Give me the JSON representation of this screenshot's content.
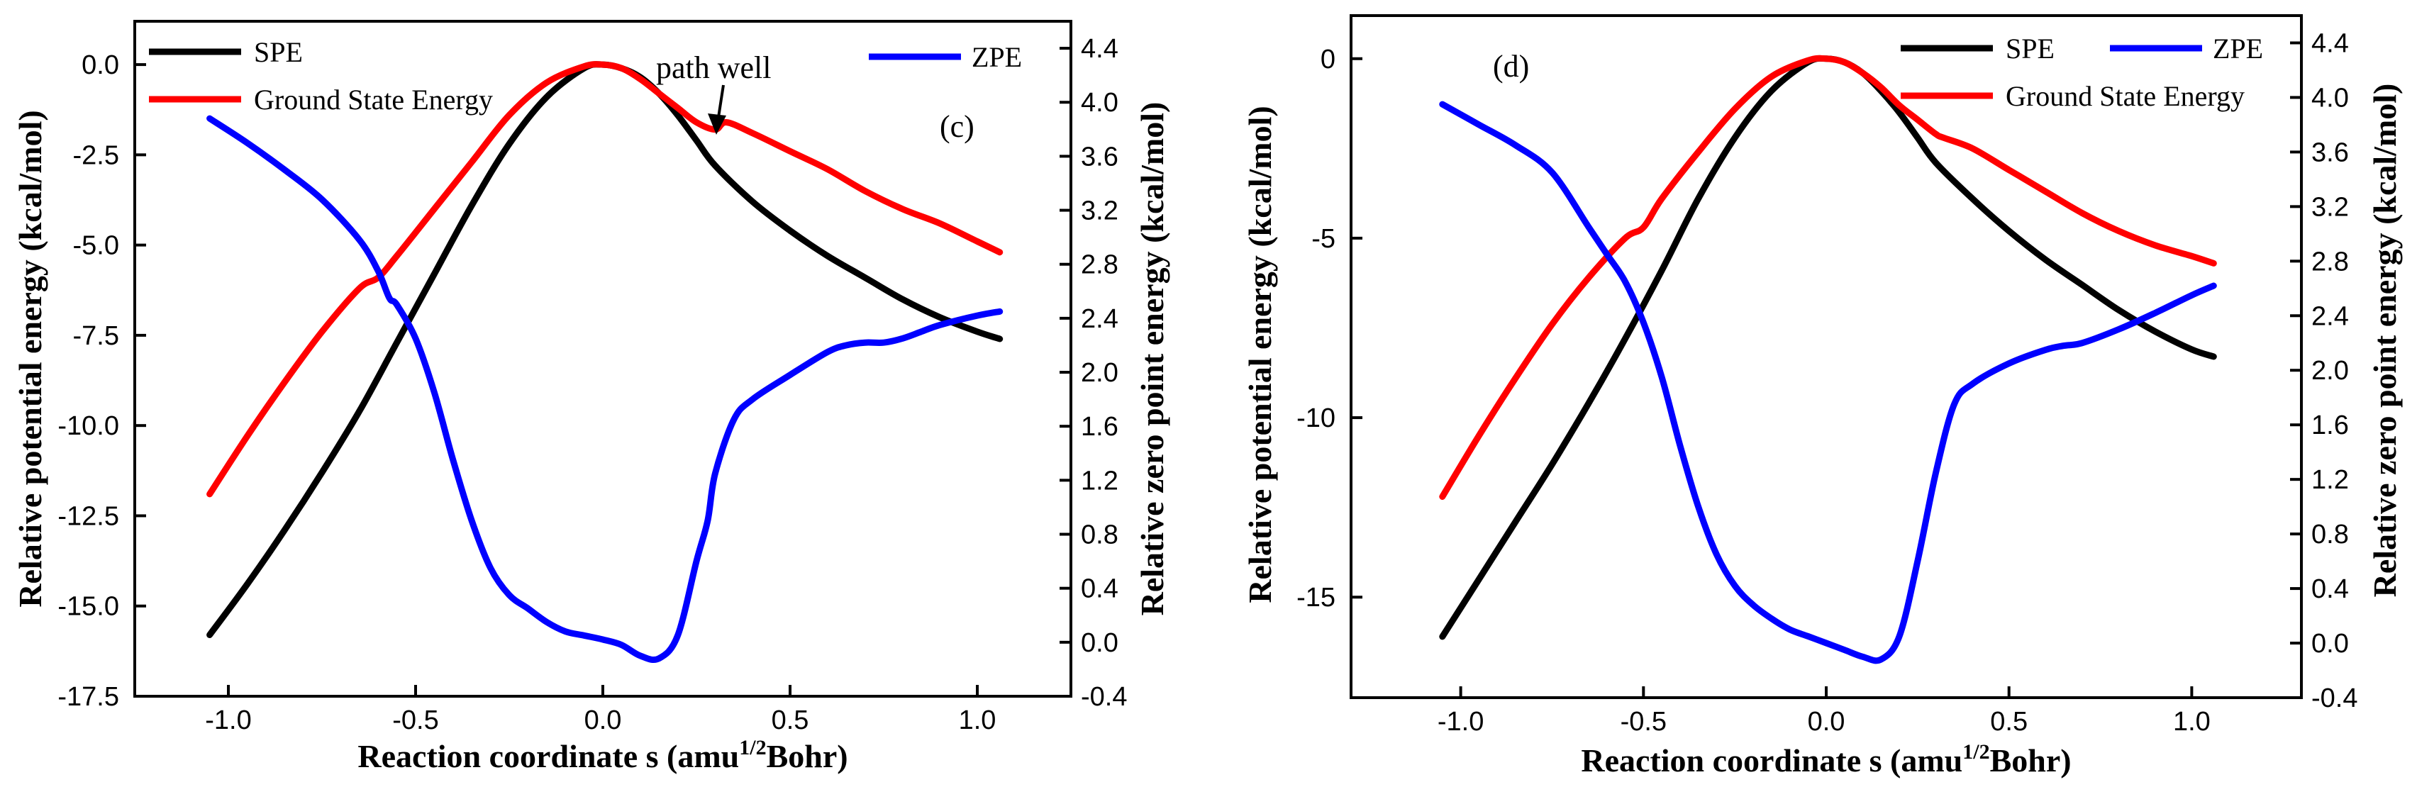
{
  "chart_data": [
    {
      "panel_label": "(c)",
      "type": "line",
      "xlabel": "Reaction coordinate s (amu",
      "xlabel_sup": "1/2",
      "xlabel_tail": "Bohr)",
      "ylabel": "Relative potential energy (kcal/mol)",
      "y2label": "Relative zero point energy (kcal/mol)",
      "xlim": [
        -1.25,
        1.25
      ],
      "ylim": [
        -17.5,
        1.2
      ],
      "y2lim": [
        -0.4,
        4.6
      ],
      "xticks": [
        -1.0,
        -0.5,
        0.0,
        0.5,
        1.0
      ],
      "xtick_labels": [
        "-1.0",
        "-0.5",
        "0.0",
        "0.5",
        "1.0"
      ],
      "yticks": [
        0.0,
        -2.5,
        -5.0,
        -7.5,
        -10.0,
        -12.5,
        -15.0,
        -17.5
      ],
      "ytick_labels": [
        "0.0",
        "-2.5",
        "-5.0",
        "-7.5",
        "-10.0",
        "-12.5",
        "-15.0",
        "-17.5"
      ],
      "y2ticks": [
        4.4,
        4.0,
        3.6,
        3.2,
        2.8,
        2.4,
        2.0,
        1.6,
        1.2,
        0.8,
        0.4,
        0.0,
        -0.4
      ],
      "y2tick_labels": [
        "4.4",
        "4.0",
        "3.6",
        "3.2",
        "2.8",
        "2.4",
        "2.0",
        "1.6",
        "1.2",
        "0.8",
        "0.4",
        "0.0",
        "-0.4"
      ],
      "legend": [
        "SPE",
        "Ground State Energy",
        "ZPE"
      ],
      "legend_placement": "SPE and Ground State Energy at top-left, ZPE at top-right",
      "annotation": {
        "text": "path well",
        "x": 0.31,
        "y": -1.8,
        "axis": "left"
      },
      "series": [
        {
          "name": "SPE",
          "color": "#000000",
          "axis": "left",
          "x": [
            -1.05,
            -0.95,
            -0.85,
            -0.75,
            -0.65,
            -0.55,
            -0.45,
            -0.35,
            -0.25,
            -0.15,
            -0.05,
            0.0,
            0.05,
            0.1,
            0.15,
            0.2,
            0.25,
            0.3,
            0.4,
            0.5,
            0.6,
            0.7,
            0.8,
            0.9,
            1.0,
            1.06
          ],
          "values": [
            -15.8,
            -14.4,
            -12.9,
            -11.3,
            -9.6,
            -7.7,
            -5.8,
            -3.9,
            -2.2,
            -0.9,
            -0.1,
            0.0,
            -0.1,
            -0.35,
            -0.8,
            -1.4,
            -2.1,
            -2.8,
            -3.8,
            -4.6,
            -5.3,
            -5.9,
            -6.5,
            -7.0,
            -7.4,
            -7.6
          ]
        },
        {
          "name": "Ground State Energy",
          "color": "#ff0000",
          "axis": "left",
          "x": [
            -1.05,
            -0.95,
            -0.85,
            -0.75,
            -0.65,
            -0.6,
            -0.55,
            -0.45,
            -0.35,
            -0.25,
            -0.15,
            -0.05,
            0.0,
            0.05,
            0.1,
            0.15,
            0.2,
            0.25,
            0.3,
            0.33,
            0.4,
            0.5,
            0.6,
            0.7,
            0.8,
            0.9,
            1.0,
            1.06
          ],
          "values": [
            -11.9,
            -10.3,
            -8.8,
            -7.4,
            -6.2,
            -5.9,
            -5.3,
            -4.0,
            -2.7,
            -1.4,
            -0.5,
            -0.05,
            0.0,
            -0.1,
            -0.4,
            -0.8,
            -1.2,
            -1.6,
            -1.8,
            -1.6,
            -1.9,
            -2.4,
            -2.9,
            -3.5,
            -4.0,
            -4.4,
            -4.9,
            -5.2
          ]
        },
        {
          "name": "ZPE",
          "color": "#0000ff",
          "axis": "right",
          "x": [
            -1.05,
            -0.95,
            -0.85,
            -0.75,
            -0.65,
            -0.6,
            -0.57,
            -0.55,
            -0.5,
            -0.45,
            -0.4,
            -0.35,
            -0.3,
            -0.25,
            -0.2,
            -0.15,
            -0.1,
            -0.05,
            0.0,
            0.05,
            0.1,
            0.15,
            0.2,
            0.25,
            0.28,
            0.3,
            0.35,
            0.4,
            0.5,
            0.6,
            0.65,
            0.7,
            0.75,
            0.8,
            0.85,
            0.9,
            1.0,
            1.06
          ],
          "values": [
            3.88,
            3.7,
            3.5,
            3.28,
            2.98,
            2.75,
            2.55,
            2.5,
            2.25,
            1.85,
            1.35,
            0.9,
            0.55,
            0.35,
            0.25,
            0.15,
            0.08,
            0.05,
            0.02,
            -0.02,
            -0.1,
            -0.12,
            0.05,
            0.6,
            0.9,
            1.25,
            1.65,
            1.8,
            1.98,
            2.15,
            2.2,
            2.22,
            2.22,
            2.25,
            2.3,
            2.35,
            2.42,
            2.45
          ]
        }
      ]
    },
    {
      "panel_label": "(d)",
      "type": "line",
      "xlabel": "Reaction coordinate s (amu",
      "xlabel_sup": "1/2",
      "xlabel_tail": "Bohr)",
      "ylabel": "Relative potential energy (kcal/mol)",
      "y2label": "Relative zero point energy (kcal/mol)",
      "xlim": [
        -1.3,
        1.3
      ],
      "ylim": [
        -17.8,
        1.2
      ],
      "y2lim": [
        -0.4,
        4.6
      ],
      "xticks": [
        -1.0,
        -0.5,
        0.0,
        0.5,
        1.0
      ],
      "xtick_labels": [
        "-1.0",
        "-0.5",
        "0.0",
        "0.5",
        "1.0"
      ],
      "yticks": [
        0,
        -5,
        -10,
        -15
      ],
      "ytick_labels": [
        "0",
        "-5",
        "-10",
        "-15"
      ],
      "y2ticks": [
        4.4,
        4.0,
        3.6,
        3.2,
        2.8,
        2.4,
        2.0,
        1.6,
        1.2,
        0.8,
        0.4,
        0.0,
        -0.4
      ],
      "y2tick_labels": [
        "4.4",
        "4.0",
        "3.6",
        "3.2",
        "2.8",
        "2.4",
        "2.0",
        "1.6",
        "1.2",
        "0.8",
        "0.4",
        "0.0",
        "-0.4"
      ],
      "legend": [
        "SPE",
        "ZPE",
        "Ground State Energy"
      ],
      "legend_placement": "top-right",
      "series": [
        {
          "name": "SPE",
          "color": "#000000",
          "axis": "left",
          "x": [
            -1.05,
            -0.95,
            -0.85,
            -0.75,
            -0.65,
            -0.55,
            -0.45,
            -0.35,
            -0.25,
            -0.15,
            -0.05,
            0.0,
            0.05,
            0.1,
            0.15,
            0.2,
            0.25,
            0.3,
            0.4,
            0.5,
            0.6,
            0.7,
            0.8,
            0.9,
            1.0,
            1.06
          ],
          "values": [
            -16.1,
            -14.5,
            -12.9,
            -11.3,
            -9.6,
            -7.8,
            -5.9,
            -3.9,
            -2.2,
            -0.9,
            -0.1,
            0.0,
            -0.1,
            -0.4,
            -0.9,
            -1.5,
            -2.2,
            -2.9,
            -3.9,
            -4.8,
            -5.6,
            -6.3,
            -7.0,
            -7.6,
            -8.1,
            -8.3
          ]
        },
        {
          "name": "Ground State Energy",
          "color": "#ff0000",
          "axis": "left",
          "x": [
            -1.05,
            -0.95,
            -0.85,
            -0.75,
            -0.65,
            -0.55,
            -0.5,
            -0.45,
            -0.35,
            -0.25,
            -0.15,
            -0.05,
            0.0,
            0.05,
            0.1,
            0.15,
            0.2,
            0.25,
            0.3,
            0.32,
            0.4,
            0.5,
            0.6,
            0.7,
            0.8,
            0.9,
            1.0,
            1.06
          ],
          "values": [
            -12.2,
            -10.5,
            -8.9,
            -7.4,
            -6.1,
            -5.0,
            -4.7,
            -3.9,
            -2.6,
            -1.4,
            -0.5,
            -0.05,
            0.0,
            -0.1,
            -0.4,
            -0.8,
            -1.3,
            -1.7,
            -2.1,
            -2.2,
            -2.5,
            -3.1,
            -3.7,
            -4.3,
            -4.8,
            -5.2,
            -5.5,
            -5.7
          ]
        },
        {
          "name": "ZPE",
          "color": "#0000ff",
          "axis": "right",
          "x": [
            -1.05,
            -0.95,
            -0.85,
            -0.75,
            -0.65,
            -0.6,
            -0.55,
            -0.5,
            -0.45,
            -0.4,
            -0.35,
            -0.3,
            -0.25,
            -0.2,
            -0.15,
            -0.1,
            -0.05,
            0.0,
            0.05,
            0.1,
            0.15,
            0.2,
            0.25,
            0.3,
            0.35,
            0.4,
            0.5,
            0.6,
            0.65,
            0.7,
            0.8,
            0.9,
            1.0,
            1.06
          ],
          "values": [
            3.95,
            3.8,
            3.65,
            3.45,
            3.05,
            2.85,
            2.65,
            2.35,
            1.95,
            1.45,
            1.0,
            0.65,
            0.42,
            0.28,
            0.18,
            0.1,
            0.05,
            0.0,
            -0.05,
            -0.1,
            -0.12,
            0.05,
            0.6,
            1.25,
            1.75,
            1.9,
            2.05,
            2.15,
            2.18,
            2.2,
            2.3,
            2.42,
            2.55,
            2.62
          ]
        }
      ]
    }
  ]
}
